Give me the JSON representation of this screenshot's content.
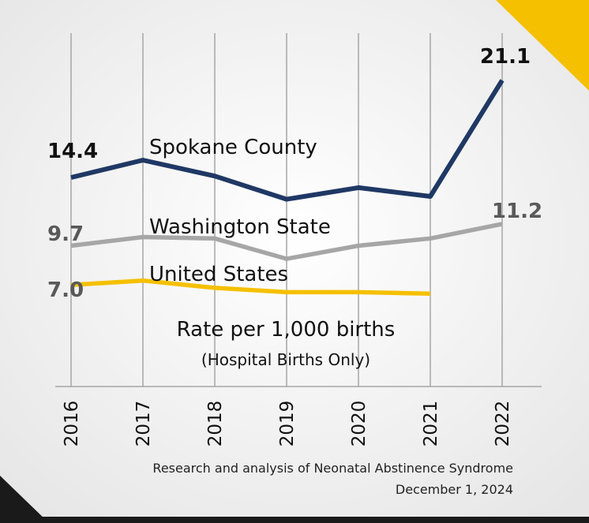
{
  "chart_data": {
    "type": "line",
    "x": [
      "2016",
      "2017",
      "2018",
      "2019",
      "2020",
      "2021",
      "2022"
    ],
    "series": [
      {
        "name": "Spokane County",
        "values": [
          14.4,
          15.6,
          14.5,
          12.9,
          13.7,
          13.1,
          21.1
        ]
      },
      {
        "name": "Washington State",
        "values": [
          9.7,
          10.3,
          10.2,
          8.8,
          9.7,
          10.2,
          11.2
        ]
      },
      {
        "name": "United States",
        "values": [
          7.0,
          7.3,
          6.8,
          6.5,
          6.5,
          6.4,
          null
        ]
      }
    ],
    "point_labels": [
      {
        "series": 0,
        "index": 0,
        "text": "14.4"
      },
      {
        "series": 0,
        "index": 6,
        "text": "21.1"
      },
      {
        "series": 1,
        "index": 0,
        "text": "9.7"
      },
      {
        "series": 1,
        "index": 6,
        "text": "11.2"
      },
      {
        "series": 2,
        "index": 0,
        "text": "7.0"
      }
    ],
    "annotation_main": "Rate per 1,000 births",
    "annotation_sub": "(Hospital Births Only)",
    "ylim": [
      0,
      23.5
    ],
    "grid": "vertical",
    "colors": [
      "#1f3864",
      "#a6a6a6",
      "#f5c000"
    ]
  },
  "footer": {
    "line1": "Research and analysis of Neonatal Abstinence Syndrome",
    "line2": "December 1, 2024"
  },
  "colors": {
    "background": "#f2f2f2",
    "accent_corner": "#f5c000",
    "dark_band": "#1a1a1a"
  }
}
